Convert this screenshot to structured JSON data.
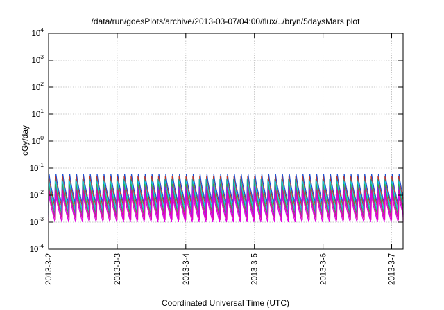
{
  "chart_data": {
    "type": "line",
    "title": "/data/run/goesPlots/archive/2013-03-07/04:00/flux/../bryn/5daysMars.plot",
    "xlabel": "Coordinated Universal Time (UTC)",
    "ylabel": "cGy/day",
    "y_scale": "log",
    "ylim": [
      0.0001,
      10000
    ],
    "y_ticks": [
      {
        "base": "10",
        "exp": "-4",
        "value": 0.0001
      },
      {
        "base": "10",
        "exp": "-3",
        "value": 0.001
      },
      {
        "base": "10",
        "exp": "-2",
        "value": 0.01
      },
      {
        "base": "10",
        "exp": "-1",
        "value": 0.1
      },
      {
        "base": "10",
        "exp": "0",
        "value": 1
      },
      {
        "base": "10",
        "exp": "1",
        "value": 10
      },
      {
        "base": "10",
        "exp": "2",
        "value": 100
      },
      {
        "base": "10",
        "exp": "3",
        "value": 1000
      },
      {
        "base": "10",
        "exp": "4",
        "value": 10000
      }
    ],
    "xlim": [
      "2013-03-02T00:00",
      "2013-03-07T04:00"
    ],
    "x_ticks": [
      {
        "label": "2013-3-2",
        "value": "2013-03-02T00:00"
      },
      {
        "label": "2013-3-3",
        "value": "2013-03-03T00:00"
      },
      {
        "label": "2013-3-4",
        "value": "2013-03-04T00:00"
      },
      {
        "label": "2013-3-5",
        "value": "2013-03-05T00:00"
      },
      {
        "label": "2013-3-6",
        "value": "2013-03-06T00:00"
      },
      {
        "label": "2013-3-7",
        "value": "2013-03-07T00:00"
      }
    ],
    "grid": true,
    "legend": "none",
    "cycle_hours": 2.4,
    "series": [
      {
        "color": "#1a4fd6",
        "peak": 0.062,
        "trough": 0.004
      },
      {
        "color": "#c0392b",
        "peak": 0.052,
        "trough": 0.0035
      },
      {
        "color": "#1aa0a0",
        "peak": 0.04,
        "trough": 0.0028
      },
      {
        "color": "#19c9e0",
        "peak": 0.032,
        "trough": 0.0022
      },
      {
        "color": "#2ea84a",
        "peak": 0.026,
        "trough": 0.0018
      },
      {
        "color": "#8a2be2",
        "peak": 0.021,
        "trough": 0.0015
      },
      {
        "color": "#d4148c",
        "peak": 0.016,
        "trough": 0.0012
      },
      {
        "color": "#e000e0",
        "peak": 0.012,
        "trough": 0.001
      }
    ]
  }
}
